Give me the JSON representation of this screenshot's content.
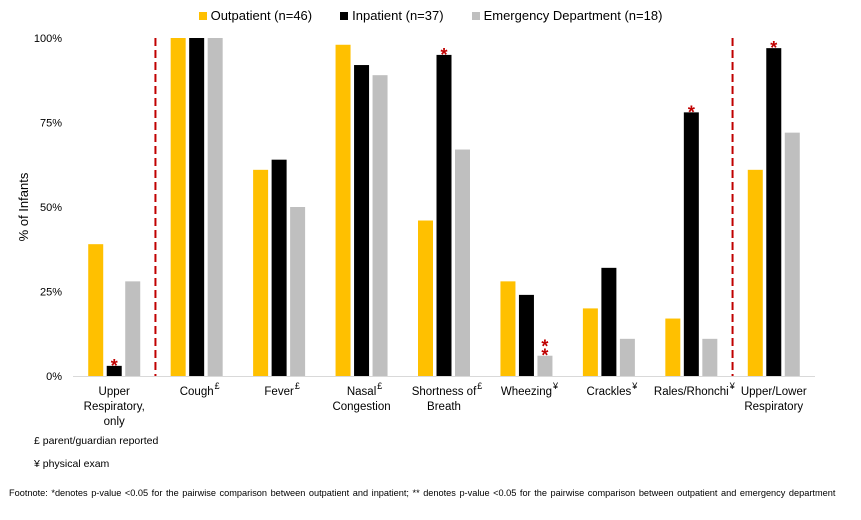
{
  "chart_data": {
    "type": "bar",
    "title": "",
    "xlabel": "",
    "ylabel": "% of Infants",
    "ylim": [
      0,
      100
    ],
    "yticks": [
      "0%",
      "25%",
      "50%",
      "75%",
      "100%"
    ],
    "ytick_values": [
      0,
      25,
      50,
      75,
      100
    ],
    "grid": false,
    "legend_position": "top-center",
    "categories": [
      {
        "lines": [
          "Upper",
          "Respiratory,",
          "only"
        ],
        "sup": ""
      },
      {
        "lines": [
          "Cough"
        ],
        "sup": "£"
      },
      {
        "lines": [
          "Fever"
        ],
        "sup": "£"
      },
      {
        "lines": [
          "Nasal",
          "Congestion"
        ],
        "sup": "£"
      },
      {
        "lines": [
          "Shortness of",
          "Breath"
        ],
        "sup": "£"
      },
      {
        "lines": [
          "Wheezing"
        ],
        "sup": "¥"
      },
      {
        "lines": [
          "Crackles"
        ],
        "sup": "¥"
      },
      {
        "lines": [
          "Rales/Rhonchi"
        ],
        "sup": "¥"
      },
      {
        "lines": [
          "Upper/Lower",
          "Respiratory"
        ],
        "sup": ""
      }
    ],
    "series": [
      {
        "name": "Outpatient (n=46)",
        "color": "#FFC000",
        "values": [
          39,
          100,
          61,
          98,
          46,
          28,
          20,
          17,
          61
        ]
      },
      {
        "name": "Inpatient (n=37)",
        "color": "#000000",
        "values": [
          3,
          100,
          64,
          92,
          95,
          24,
          32,
          78,
          97
        ]
      },
      {
        "name": "Emergency Department (n=18)",
        "color": "#BFBFBF",
        "values": [
          28,
          100,
          50,
          89,
          67,
          6,
          11,
          11,
          72
        ]
      }
    ],
    "annotations": [
      {
        "category_index": 0,
        "series_index": 1,
        "text": "*"
      },
      {
        "category_index": 4,
        "series_index": 1,
        "text": "*"
      },
      {
        "category_index": 5,
        "series_index": 2,
        "text": "**"
      },
      {
        "category_index": 7,
        "series_index": 1,
        "text": "*"
      },
      {
        "category_index": 8,
        "series_index": 1,
        "text": "*"
      }
    ],
    "separators_after_category": [
      0,
      7
    ],
    "separator_color": "#C00000",
    "annotation_color": "#C00000"
  },
  "notes": {
    "pound": "£ parent/guardian reported",
    "yen": "¥ physical exam"
  },
  "footnote": "Footnote:  *denotes p-value <0.05 for the pairwise comparison between outpatient and inpatient; ** denotes p-value <0.05 for the pairwise comparison between outpatient and emergency department"
}
